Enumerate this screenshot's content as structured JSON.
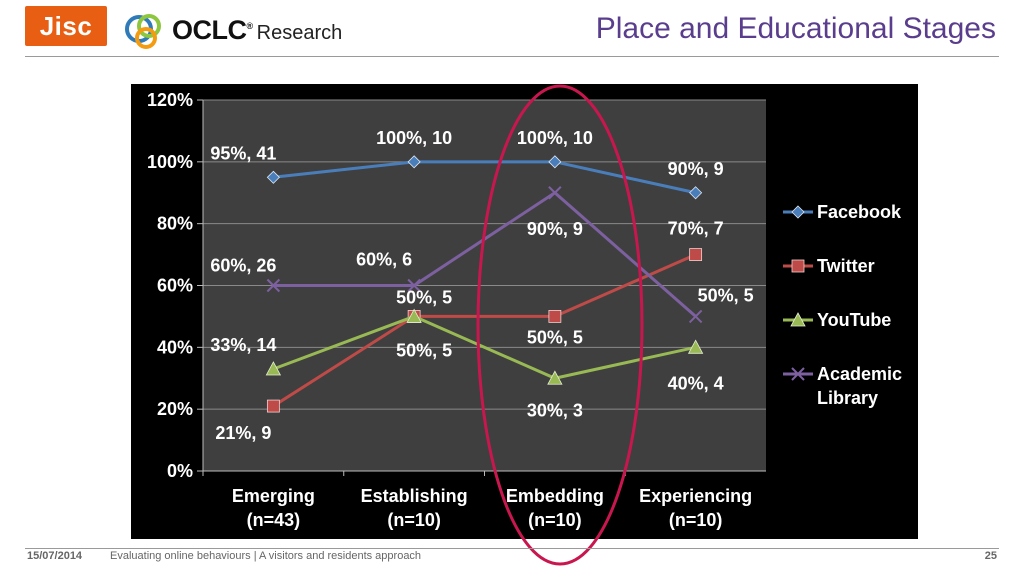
{
  "header": {
    "jisc_logo_text": "Jisc",
    "oclc_logo_text": "OCLC",
    "oclc_logo_reg": "®",
    "oclc_logo_sub": "Research",
    "title": "Place and Educational Stages"
  },
  "footer": {
    "date": "15/07/2014",
    "caption": "Evaluating online behaviours | A visitors and residents approach",
    "page_number": "25"
  },
  "colors": {
    "title": "#5a3e8d",
    "highlight": "#c8174f",
    "jisc": "#e85e13"
  },
  "chart_data": {
    "type": "line",
    "title": "",
    "xlabel": "",
    "ylabel": "",
    "ylim": [
      0,
      120
    ],
    "yticks": [
      "0%",
      "20%",
      "40%",
      "60%",
      "80%",
      "100%",
      "120%"
    ],
    "categories": [
      [
        "Emerging",
        "(n=43)"
      ],
      [
        "Establishing",
        "(n=10)"
      ],
      [
        "Embedding",
        "(n=10)"
      ],
      [
        "Experiencing",
        "(n=10)"
      ]
    ],
    "grid": true,
    "legend_position": "right",
    "series": [
      {
        "name": "Facebook",
        "color": "#4a7ebb",
        "marker": "diamond",
        "values": [
          95,
          100,
          100,
          90
        ],
        "labels": [
          "95%, 41",
          "100%, 10",
          "100%, 10",
          "90%, 9"
        ]
      },
      {
        "name": "Twitter",
        "color": "#be4b48",
        "marker": "square",
        "values": [
          21,
          50,
          50,
          70
        ],
        "labels": [
          "21%, 9",
          "50%, 5",
          "50%, 5",
          "70%, 7"
        ]
      },
      {
        "name": "YouTube",
        "color": "#98b954",
        "marker": "triangle",
        "values": [
          33,
          50,
          30,
          40
        ],
        "labels": [
          "33%, 14",
          "50%, 5",
          "30%, 3",
          "40%, 4"
        ]
      },
      {
        "name": [
          "Academic",
          "Library"
        ],
        "color": "#7d60a0",
        "marker": "x",
        "values": [
          60,
          60,
          90,
          50
        ],
        "labels": [
          "60%, 26",
          "60%, 6",
          "90%, 9",
          "50%, 5"
        ]
      }
    ]
  }
}
